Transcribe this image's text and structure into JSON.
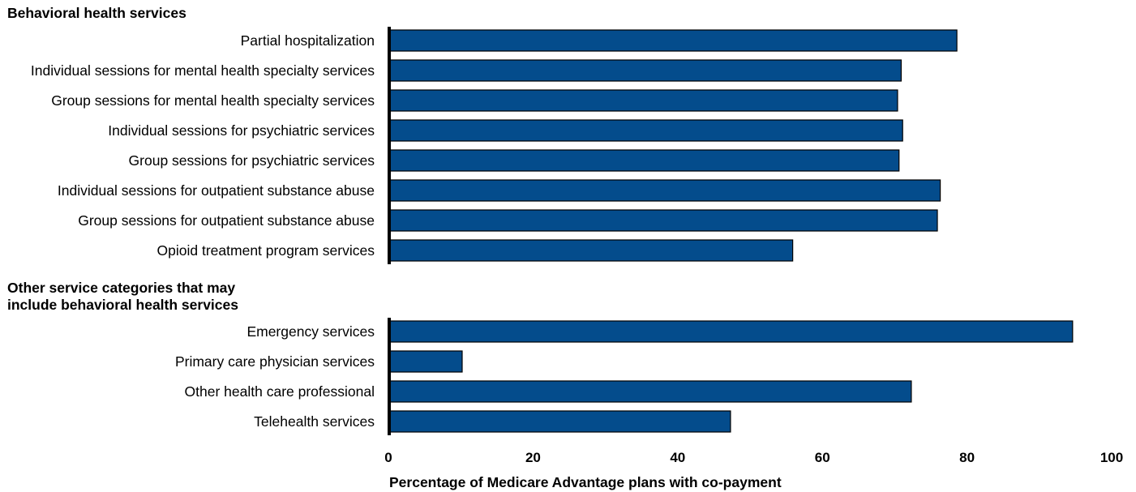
{
  "chart_data": {
    "type": "bar",
    "orientation": "horizontal",
    "groups": [
      {
        "title": "Behavioral health services",
        "categories": [
          "Partial hospitalization",
          "Individual sessions for mental health specialty services",
          "Group sessions for mental health specialty services",
          "Individual sessions for psychiatric services",
          "Group sessions for psychiatric services",
          "Individual sessions for outpatient substance abuse",
          "Group sessions for outpatient substance abuse",
          "Opioid treatment program services"
        ],
        "values": [
          78.6,
          70.9,
          70.4,
          71.1,
          70.6,
          76.3,
          75.9,
          55.9
        ]
      },
      {
        "title": "Other service categories that may include behavioral health services",
        "title_lines": [
          "Other service categories that may",
          "include behavioral health services"
        ],
        "categories": [
          "Emergency services",
          "Primary care physician services",
          "Other health care professional",
          "Telehealth services"
        ],
        "values": [
          94.6,
          10.2,
          72.3,
          47.3
        ]
      }
    ],
    "xlabel": "Percentage of Medicare Advantage plans with co-payment",
    "xlim": [
      0,
      100
    ],
    "xticks": [
      0,
      20,
      40,
      60,
      80,
      100
    ],
    "grid": false,
    "bar_color": "#044c8c",
    "bar_edge_color": "#000000"
  }
}
